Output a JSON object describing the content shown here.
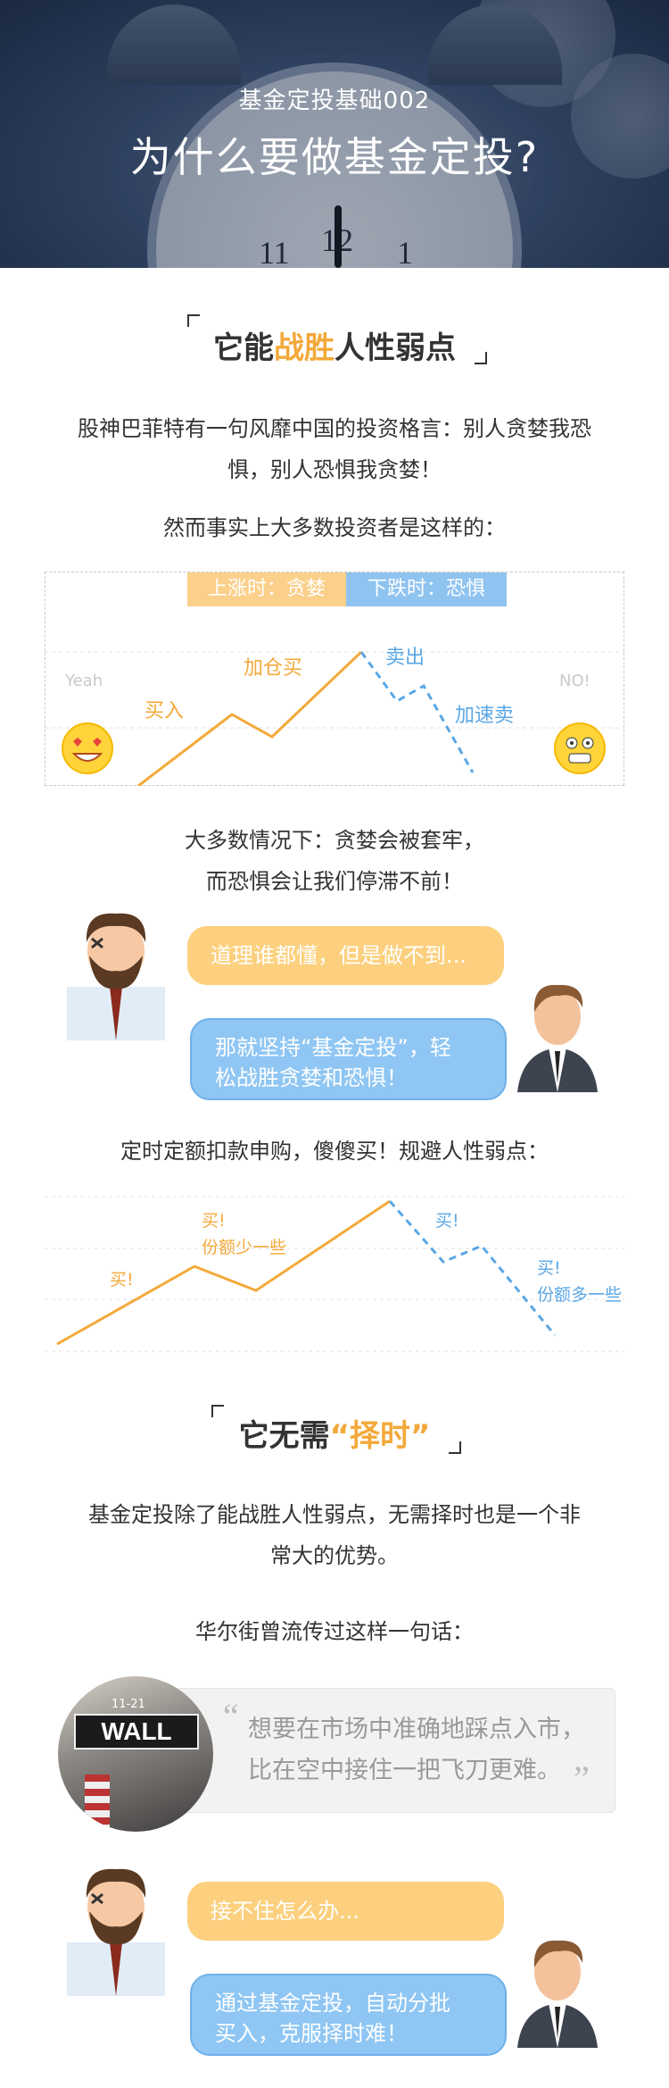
{
  "header": {
    "subtitle": "基金定投基础002",
    "title": "为什么要做基金定投?",
    "clock_numbers": [
      "11",
      "12",
      "1"
    ]
  },
  "section1": {
    "title_pre": "它能",
    "title_highlight": "战胜",
    "title_post": "人性弱点",
    "para1_line1": "股神巴菲特有一句风靡中国的投资格言：别人贪婪我恐",
    "para1_line2": "惧，别人恐惧我贪婪！",
    "para2": "然而事实上大多数投资者是这样的：",
    "chart1": {
      "tag_up": "上涨时：贪婪",
      "tag_down": "下跌时：恐惧",
      "label_buy": "买入",
      "label_add": "加仓买",
      "label_sell": "卖出",
      "label_sell_fast": "加速卖",
      "yeah": "Yeah",
      "no": "NO!"
    },
    "para3_line1": "大多数情况下：贪婪会被套牢，",
    "para3_line2": "而恐惧会让我们停滞不前！",
    "dialog1": {
      "bubble_orange": "道理谁都懂，但是做不到...",
      "bubble_blue_line1": "那就坚持“基金定投”，轻",
      "bubble_blue_line2": "松战胜贪婪和恐惧！"
    },
    "para4": "定时定额扣款申购，傻傻买！规避人性弱点：",
    "chart2": {
      "buy1": "买!",
      "buy2": "买!",
      "share_less": "份额少一些",
      "buy3": "买!",
      "buy4": "买!",
      "share_more": "份额多一些"
    }
  },
  "section2": {
    "title_pre": "它无需",
    "title_highlight": "“择时”",
    "para1_line1": "基金定投除了能战胜人性弱点，无需择时也是一个非",
    "para1_line2": "常大的优势。",
    "para2": "华尔街曾流传过这样一句话：",
    "photo_sign": "WALL",
    "photo_sign_small": "11-21",
    "quote_line1": "想要在市场中准确地踩点入市，",
    "quote_line2": "比在空中接住一把飞刀更难。",
    "quote_open": "“",
    "quote_close": "”",
    "dialog2": {
      "bubble_orange": "接不住怎么办...",
      "bubble_blue_line1": "通过基金定投，自动分批",
      "bubble_blue_line2": "买入，克服择时难！"
    }
  },
  "colors": {
    "orange": "#f3a93a",
    "blue": "#5aa7e6",
    "bubble_orange": "#fcd07e",
    "bubble_blue": "#8fc6f3"
  }
}
